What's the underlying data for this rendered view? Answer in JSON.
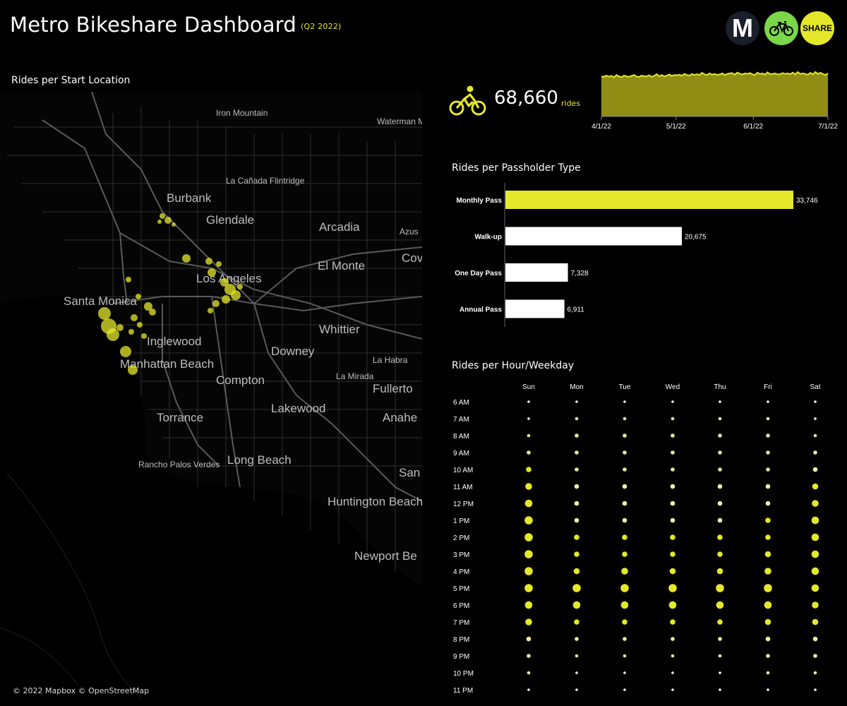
{
  "header": {
    "title": "Metro Bikeshare Dashboard",
    "subtitle": "(Q2 2022)",
    "logos": {
      "metro": "M",
      "bike": "bicycle-icon",
      "share": "SHARE"
    }
  },
  "colors": {
    "accent": "#e5e82a",
    "background": "#000000",
    "bar_default": "#ffffff",
    "logo_bike_bg": "#7bd64a",
    "logo_metro_bg": "#1a1f2b"
  },
  "map": {
    "title": "Rides per Start Location",
    "credit": "© 2022 Mapbox © OpenStreetMap",
    "places": [
      "Iron Mountain",
      "Waterman Mountain",
      "La Cañada Flintridge",
      "Burbank",
      "Glendale",
      "Arcadia",
      "Azus",
      "Cov",
      "El Monte",
      "Los Angeles",
      "Santa Monica",
      "Whittier",
      "Inglewood",
      "Downey",
      "La Habra",
      "Manhattan Beach",
      "La Mirada",
      "Compton",
      "Fullerto",
      "Lakewood",
      "Anahe",
      "Torrance",
      "Rancho Palos Verdes",
      "Long Beach",
      "San",
      "Huntington Beach",
      "Newport Be"
    ]
  },
  "kpi": {
    "icon": "cyclist-icon",
    "value": "68,660",
    "unit": "rides"
  },
  "chart_data": [
    {
      "type": "area",
      "title": "",
      "x_ticks": [
        "4/1/22",
        "5/1/22",
        "6/1/22",
        "7/1/22"
      ],
      "x_range": [
        "2022-04-01",
        "2022-06-30"
      ],
      "y_min": 0,
      "values": [
        745,
        735,
        760,
        740,
        755,
        725,
        770,
        745,
        730,
        760,
        745,
        735,
        755,
        770,
        740,
        735,
        760,
        745,
        745,
        765,
        735,
        755,
        785,
        745,
        770,
        745,
        760,
        780,
        750,
        770,
        765,
        775,
        755,
        790,
        770,
        760,
        790,
        770,
        785,
        770,
        810,
        780,
        770,
        800,
        775,
        790,
        770,
        780,
        800,
        770,
        790,
        800,
        805,
        775,
        815,
        795,
        780,
        800,
        790,
        805,
        785,
        770,
        815,
        790,
        800,
        775,
        820,
        785,
        790,
        800,
        780,
        785,
        805,
        790,
        800,
        785,
        815,
        780,
        825,
        790,
        800,
        790,
        775,
        810,
        780,
        825,
        790,
        810,
        790,
        770,
        800
      ]
    },
    {
      "type": "bar",
      "title": "Rides per Passholder Type",
      "orientation": "horizontal",
      "categories": [
        "Monthly Pass",
        "Walk-up",
        "One Day Pass",
        "Annual Pass"
      ],
      "values": [
        33746,
        20675,
        7328,
        6911
      ],
      "labels": [
        "33,746",
        "20,675",
        "7,328",
        "6,911"
      ],
      "highlight": "Monthly Pass"
    },
    {
      "type": "scatter",
      "title": "Rides per Hour/Weekday",
      "days": [
        "Sun",
        "Mon",
        "Tue",
        "Wed",
        "Thu",
        "Fri",
        "Sat"
      ],
      "hours": [
        "6 AM",
        "7 AM",
        "8 AM",
        "9 AM",
        "10 AM",
        "11 AM",
        "12 PM",
        "1 PM",
        "2 PM",
        "3 PM",
        "4 PM",
        "5 PM",
        "6 PM",
        "7 PM",
        "8 PM",
        "9 PM",
        "10 PM",
        "11 PM"
      ],
      "values": [
        [
          1,
          1,
          1,
          1,
          1,
          1,
          1
        ],
        [
          1,
          2,
          2,
          2,
          2,
          2,
          1
        ],
        [
          2,
          3,
          3,
          3,
          3,
          3,
          2
        ],
        [
          3,
          3,
          3,
          3,
          3,
          3,
          3
        ],
        [
          5,
          3,
          3,
          3,
          3,
          3,
          4
        ],
        [
          7,
          4,
          4,
          4,
          4,
          4,
          6
        ],
        [
          8,
          4,
          4,
          4,
          4,
          4,
          7
        ],
        [
          9,
          4,
          4,
          4,
          4,
          5,
          8
        ],
        [
          9,
          5,
          5,
          5,
          5,
          5,
          8
        ],
        [
          9,
          5,
          5,
          5,
          5,
          6,
          8
        ],
        [
          9,
          6,
          7,
          6,
          6,
          7,
          8
        ],
        [
          9,
          9,
          9,
          9,
          9,
          9,
          8
        ],
        [
          8,
          8,
          8,
          8,
          8,
          8,
          7
        ],
        [
          7,
          5,
          5,
          5,
          5,
          6,
          6
        ],
        [
          4,
          3,
          3,
          3,
          3,
          4,
          4
        ],
        [
          3,
          2,
          2,
          2,
          2,
          3,
          3
        ],
        [
          2,
          1,
          1,
          1,
          1,
          2,
          2
        ],
        [
          1,
          1,
          1,
          1,
          1,
          1,
          1
        ]
      ]
    }
  ],
  "sections": {
    "passholder_title": "Rides per Passholder Type",
    "hourly_title": "Rides per Hour/Weekday"
  }
}
